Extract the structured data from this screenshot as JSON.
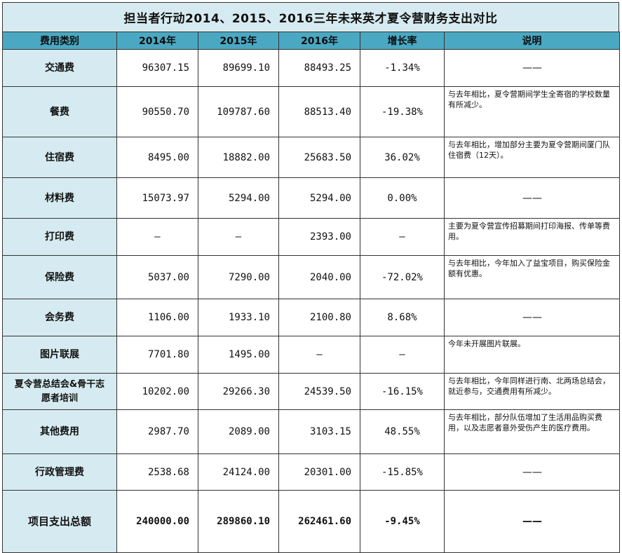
{
  "title": "担当者行动2014、2015、2016三年未来英才夏令营财务支出对比",
  "headers": [
    "费用类别",
    "2014年",
    "2015年",
    "2016年",
    "增长率",
    "说明"
  ],
  "rows": [
    {
      "category": "交通费",
      "y2014": "96307.15",
      "y2015": "89699.10",
      "y2016": "88493.25",
      "growth": "-1.34%",
      "note": "——"
    },
    {
      "category": "餐费",
      "y2014": "90550.70",
      "y2015": "109787.60",
      "y2016": "88513.40",
      "growth": "-19.38%",
      "note": "与去年相比，夏令营期间学生全寄宿的学校数量有所减少。"
    },
    {
      "category": "住宿费",
      "y2014": "8495.00",
      "y2015": "18882.00",
      "y2016": "25683.50",
      "growth": "36.02%",
      "note": "与去年相比，增加部分主要为夏令营期间厦门队住宿费（12天）。"
    },
    {
      "category": "材料费",
      "y2014": "15073.97",
      "y2015": "5294.00",
      "y2016": "5294.00",
      "growth": "0.00%",
      "note": "——"
    },
    {
      "category": "打印费",
      "y2014": "—",
      "y2015": "—",
      "y2016": "2393.00",
      "growth": "—",
      "note": "主要为夏令营宣传招募期间打印海报、传单等费用。"
    },
    {
      "category": "保险费",
      "y2014": "5037.00",
      "y2015": "7290.00",
      "y2016": "2040.00",
      "growth": "-72.02%",
      "note": "与去年相比，今年加入了益宝项目，购买保险金额有优惠。"
    },
    {
      "category": "会务费",
      "y2014": "1106.00",
      "y2015": "1933.10",
      "y2016": "2100.80",
      "growth": "8.68%",
      "note": "——"
    },
    {
      "category": "图片联展",
      "y2014": "7701.80",
      "y2015": "1495.00",
      "y2016": "—",
      "growth": "—",
      "note": "今年未开展图片联展。"
    },
    {
      "category": "夏令营总结会&骨干志愿者培训",
      "y2014": "10202.00",
      "y2015": "29266.30",
      "y2016": "24539.50",
      "growth": "-16.15%",
      "note": "与去年相比，今年同样进行南、北两场总结会，就近参与，交通费用有所减少。"
    },
    {
      "category": "其他费用",
      "y2014": "2987.70",
      "y2015": "2089.00",
      "y2016": "3103.15",
      "growth": "48.55%",
      "note": "与去年相比，部分队伍增加了生活用品购买费用，以及志愿者意外受伤产生的医疗费用。"
    },
    {
      "category": "行政管理费",
      "y2014": "2538.68",
      "y2015": "24124.00",
      "y2016": "20301.00",
      "growth": "-15.85%",
      "note": "——"
    },
    {
      "category": "项目支出总额",
      "y2014": "240000.00",
      "y2015": "289860.10",
      "y2016": "262461.60",
      "growth": "-9.45%",
      "note": "——"
    }
  ]
}
